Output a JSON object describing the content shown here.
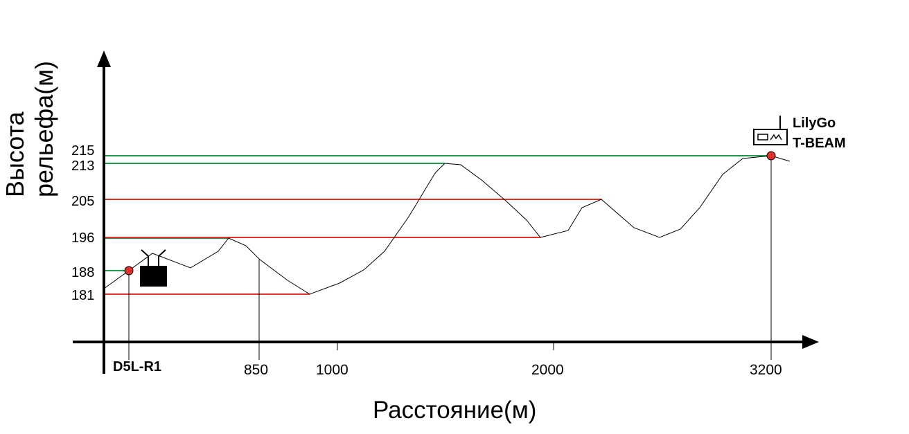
{
  "axis": {
    "y_label_line1": "Высота",
    "y_label_line2": "рельефа(м)",
    "x_label": "Расстояние(м)"
  },
  "y_ticks": [
    "215",
    "213",
    "205",
    "196",
    "188",
    "181"
  ],
  "x_ticks": [
    "850",
    "1000",
    "2000",
    "3200"
  ],
  "devices": {
    "left": {
      "label": "D5L-R1",
      "elevation": 188,
      "icon": "router-icon"
    },
    "right": {
      "label_line1": "LilyGo",
      "label_line2": "T-BEAM",
      "elevation": 215,
      "distance": 3200,
      "icon": "radio-device-icon"
    }
  },
  "colors": {
    "green_line": "#1a9a4a",
    "red_line": "#e0302a",
    "marker": "#e0302a",
    "terrain": "#000000"
  }
}
